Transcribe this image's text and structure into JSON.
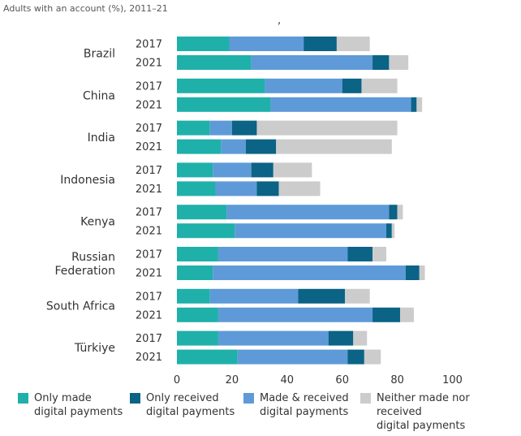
{
  "subtitle": "Adults with an account (%), 2011–21",
  "stray_mark": ",",
  "colors": {
    "only_made": "#1fb0aa",
    "only_received": "#0b6385",
    "made_received": "#5e9ad8",
    "neither": "#cccccc"
  },
  "legend": [
    {
      "key": "only_made",
      "label_lines": [
        "Only made",
        "digital payments"
      ]
    },
    {
      "key": "only_received",
      "label_lines": [
        "Only received",
        "digital payments"
      ]
    },
    {
      "key": "made_received",
      "label_lines": [
        "Made & received",
        "digital payments"
      ]
    },
    {
      "key": "neither",
      "label_lines": [
        "Neither made nor",
        "received",
        "digital payments"
      ]
    }
  ],
  "chart_data": {
    "type": "bar",
    "orientation": "horizontal",
    "stacked": true,
    "title": "",
    "subtitle": "Adults with an account (%), 2011–21",
    "xlabel": "",
    "ylabel": "",
    "xlim": [
      0,
      100
    ],
    "xticks": [
      0,
      20,
      40,
      60,
      80,
      100
    ],
    "grid": false,
    "legend_position": "bottom",
    "series_order": [
      "only_made",
      "made_received",
      "only_received",
      "neither"
    ],
    "series_names": {
      "only_made": "Only made digital payments",
      "only_received": "Only received digital payments",
      "made_received": "Made & received digital payments",
      "neither": "Neither made nor received digital payments"
    },
    "groups": [
      {
        "country_lines": [
          "Brazil"
        ],
        "rows": [
          {
            "year": "2017",
            "only_made": 19,
            "made_received": 27,
            "only_received": 12,
            "neither": 12
          },
          {
            "year": "2021",
            "only_made": 27,
            "made_received": 44,
            "only_received": 6,
            "neither": 7
          }
        ]
      },
      {
        "country_lines": [
          "China"
        ],
        "rows": [
          {
            "year": "2017",
            "only_made": 32,
            "made_received": 28,
            "only_received": 7,
            "neither": 13
          },
          {
            "year": "2021",
            "only_made": 34,
            "made_received": 51,
            "only_received": 2,
            "neither": 2
          }
        ]
      },
      {
        "country_lines": [
          "India"
        ],
        "rows": [
          {
            "year": "2017",
            "only_made": 12,
            "made_received": 8,
            "only_received": 9,
            "neither": 51
          },
          {
            "year": "2021",
            "only_made": 16,
            "made_received": 9,
            "only_received": 11,
            "neither": 42
          }
        ]
      },
      {
        "country_lines": [
          "Indonesia"
        ],
        "rows": [
          {
            "year": "2017",
            "only_made": 13,
            "made_received": 14,
            "only_received": 8,
            "neither": 14
          },
          {
            "year": "2021",
            "only_made": 14,
            "made_received": 15,
            "only_received": 8,
            "neither": 15
          }
        ]
      },
      {
        "country_lines": [
          "Kenya"
        ],
        "rows": [
          {
            "year": "2017",
            "only_made": 18,
            "made_received": 59,
            "only_received": 3,
            "neither": 2
          },
          {
            "year": "2021",
            "only_made": 21,
            "made_received": 55,
            "only_received": 2,
            "neither": 1
          }
        ]
      },
      {
        "country_lines": [
          "Russian",
          "Federation"
        ],
        "rows": [
          {
            "year": "2017",
            "only_made": 15,
            "made_received": 47,
            "only_received": 9,
            "neither": 5
          },
          {
            "year": "2021",
            "only_made": 13,
            "made_received": 70,
            "only_received": 5,
            "neither": 2
          }
        ]
      },
      {
        "country_lines": [
          "South Africa"
        ],
        "rows": [
          {
            "year": "2017",
            "only_made": 12,
            "made_received": 32,
            "only_received": 17,
            "neither": 9
          },
          {
            "year": "2021",
            "only_made": 15,
            "made_received": 56,
            "only_received": 10,
            "neither": 5
          }
        ]
      },
      {
        "country_lines": [
          "Türkiye"
        ],
        "rows": [
          {
            "year": "2017",
            "only_made": 15,
            "made_received": 40,
            "only_received": 9,
            "neither": 5
          },
          {
            "year": "2021",
            "only_made": 22,
            "made_received": 40,
            "only_received": 6,
            "neither": 6
          }
        ]
      }
    ]
  }
}
